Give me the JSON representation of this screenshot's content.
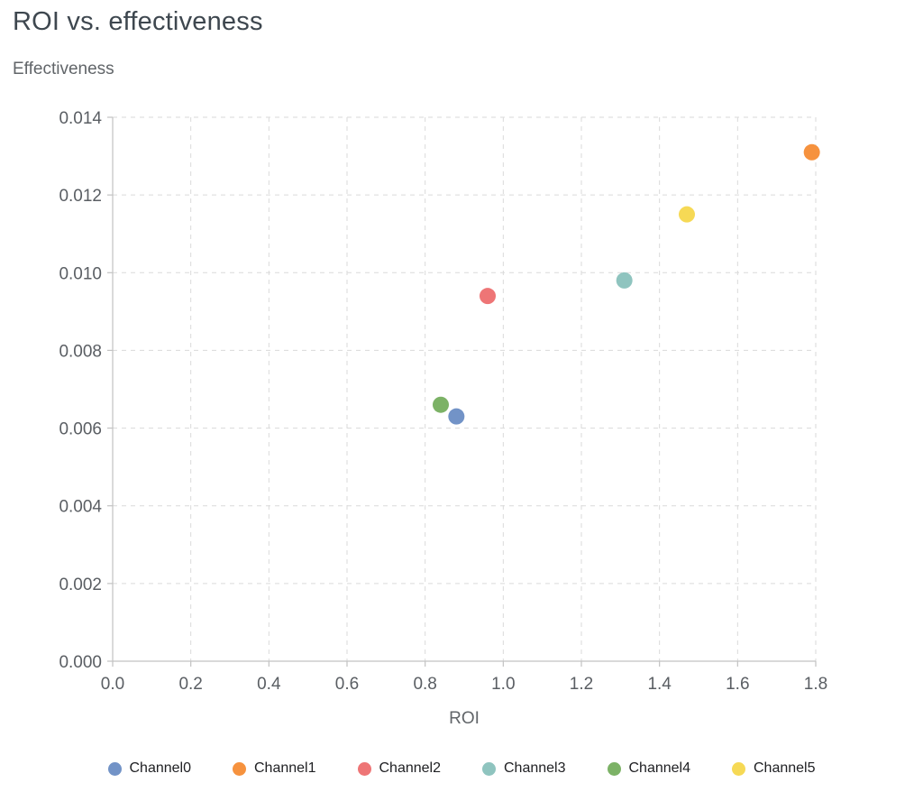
{
  "chart_data": {
    "type": "scatter",
    "title": "ROI vs. effectiveness",
    "xlabel": "ROI",
    "ylabel": "Effectiveness",
    "xlim": [
      0,
      1.8
    ],
    "ylim": [
      0,
      0.014
    ],
    "x_ticks": [
      0.0,
      0.2,
      0.4,
      0.6,
      0.8,
      1.0,
      1.2,
      1.4,
      1.6,
      1.8
    ],
    "x_tick_labels": [
      "0.0",
      "0.2",
      "0.4",
      "0.6",
      "0.8",
      "1.0",
      "1.2",
      "1.4",
      "1.6",
      "1.8"
    ],
    "y_ticks": [
      0.0,
      0.002,
      0.004,
      0.006,
      0.008,
      0.01,
      0.012,
      0.014
    ],
    "y_tick_labels": [
      "0.000",
      "0.002",
      "0.004",
      "0.006",
      "0.008",
      "0.010",
      "0.012",
      "0.014"
    ],
    "grid": "dashed",
    "legend_position": "bottom",
    "series": [
      {
        "name": "Channel0",
        "color": "#7293c7",
        "points": [
          [
            0.88,
            0.0063
          ]
        ]
      },
      {
        "name": "Channel1",
        "color": "#f6923e",
        "points": [
          [
            1.79,
            0.0131
          ]
        ]
      },
      {
        "name": "Channel2",
        "color": "#ee7576",
        "points": [
          [
            0.96,
            0.0094
          ]
        ]
      },
      {
        "name": "Channel3",
        "color": "#8fc4bf",
        "points": [
          [
            1.31,
            0.0098
          ]
        ]
      },
      {
        "name": "Channel4",
        "color": "#7cb266",
        "points": [
          [
            0.84,
            0.0066
          ]
        ]
      },
      {
        "name": "Channel5",
        "color": "#f6d955",
        "points": [
          [
            1.47,
            0.0115
          ]
        ]
      }
    ],
    "colors": {
      "grid_color": "#dadada",
      "axis_color": "#c2c2c2",
      "title_color": "#3e474f",
      "axis_label_color": "#616569",
      "tick_label_color": "#5a5e63",
      "legend_text_color": "#202124"
    }
  }
}
